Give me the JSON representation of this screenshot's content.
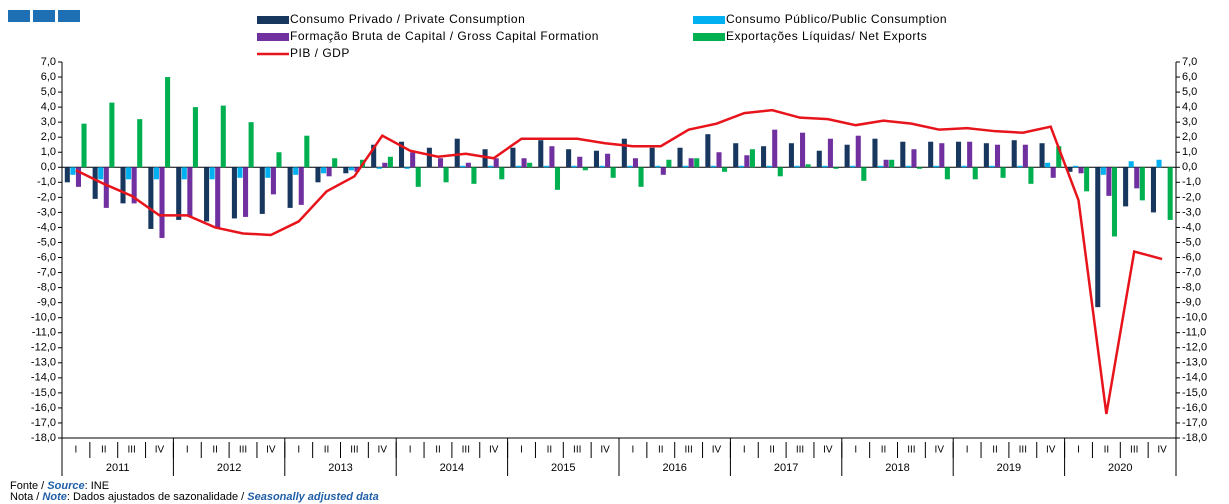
{
  "chart_data": {
    "type": "bar",
    "categories": [
      "I",
      "II",
      "III",
      "IV",
      "I",
      "II",
      "III",
      "IV",
      "I",
      "II",
      "III",
      "IV",
      "I",
      "II",
      "III",
      "IV",
      "I",
      "II",
      "III",
      "IV",
      "I",
      "II",
      "III",
      "IV",
      "I",
      "II",
      "III",
      "IV",
      "I",
      "II",
      "III",
      "IV",
      "I",
      "II",
      "III",
      "IV",
      "I",
      "II",
      "III",
      "IV"
    ],
    "groups": [
      "2011",
      "2012",
      "2013",
      "2014",
      "2015",
      "2016",
      "2017",
      "2018",
      "2019",
      "2020"
    ],
    "series": [
      {
        "name": "Consumo Privado / Private Consumption",
        "type": "bar",
        "color": "#17375e",
        "values": [
          -1.0,
          -2.1,
          -2.4,
          -4.1,
          -3.5,
          -3.6,
          -3.4,
          -3.1,
          -2.7,
          -1.0,
          -0.4,
          1.5,
          1.7,
          1.3,
          1.9,
          1.2,
          1.3,
          1.8,
          1.2,
          1.1,
          1.9,
          1.3,
          1.3,
          2.2,
          1.6,
          1.4,
          1.6,
          1.1,
          1.5,
          1.9,
          1.7,
          1.7,
          1.7,
          1.6,
          1.8,
          1.6,
          -0.3,
          -9.3,
          -2.6,
          -3.0
        ]
      },
      {
        "name": "Consumo Público/Public Consumption",
        "type": "bar",
        "color": "#00b0f0",
        "values": [
          -0.5,
          -0.8,
          -0.8,
          -0.8,
          -0.8,
          -0.8,
          -0.7,
          -0.7,
          -0.5,
          -0.4,
          -0.2,
          -0.1,
          -0.1,
          0.0,
          0.1,
          0.1,
          0.1,
          0.1,
          0.1,
          0.1,
          0.1,
          0.1,
          0.1,
          0.1,
          0.1,
          0.1,
          0.1,
          0.1,
          0.1,
          0.1,
          0.1,
          0.1,
          0.1,
          0.1,
          0.1,
          0.3,
          0.1,
          -0.5,
          0.4,
          0.5
        ]
      },
      {
        "name": "Formação Bruta de Capital / Gross Capital Formation",
        "type": "bar",
        "color": "#7030a0",
        "values": [
          -1.3,
          -2.7,
          -2.4,
          -4.7,
          -3.3,
          -4.0,
          -3.3,
          -1.8,
          -2.5,
          -0.6,
          -0.3,
          0.3,
          1.0,
          0.6,
          0.3,
          0.6,
          0.6,
          1.4,
          0.7,
          0.9,
          0.6,
          -0.5,
          0.6,
          1.0,
          0.8,
          2.5,
          2.3,
          1.9,
          2.1,
          0.5,
          1.2,
          1.6,
          1.7,
          1.5,
          1.5,
          -0.7,
          -0.4,
          -1.9,
          -1.4,
          0.0
        ]
      },
      {
        "name": "Exportações Líquidas/ Net Exports",
        "type": "bar",
        "color": "#00b050",
        "values": [
          2.9,
          4.3,
          3.2,
          6.0,
          4.0,
          4.1,
          3.0,
          1.0,
          2.1,
          0.6,
          0.5,
          0.7,
          -1.3,
          -1.0,
          -1.1,
          -0.8,
          0.3,
          -1.5,
          -0.2,
          -0.7,
          -1.3,
          0.5,
          0.6,
          -0.3,
          1.2,
          -0.6,
          0.2,
          -0.1,
          -0.9,
          0.5,
          -0.1,
          -0.8,
          -0.8,
          -0.7,
          -1.1,
          1.4,
          -1.6,
          -4.6,
          -2.2,
          -3.5
        ]
      },
      {
        "name": "PIB / GDP",
        "type": "line",
        "color": "#e8141b",
        "values": [
          -0.2,
          -1.1,
          -1.9,
          -3.2,
          -3.2,
          -4.0,
          -4.4,
          -4.5,
          -3.6,
          -1.6,
          -0.6,
          2.1,
          1.1,
          0.7,
          0.9,
          0.6,
          1.9,
          1.9,
          1.9,
          1.6,
          1.4,
          1.4,
          2.5,
          2.9,
          3.6,
          3.8,
          3.3,
          3.2,
          2.8,
          3.1,
          2.9,
          2.5,
          2.6,
          2.4,
          2.3,
          2.7,
          -2.2,
          -16.4,
          -5.6,
          -6.1
        ]
      }
    ],
    "ylim": [
      -18,
      7
    ],
    "yticks": [
      {
        "value": 7,
        "label": "7,0"
      },
      {
        "value": 6,
        "label": "6,0"
      },
      {
        "value": 5,
        "label": "5,0"
      },
      {
        "value": 4,
        "label": "4,0"
      },
      {
        "value": 3,
        "label": "3,0"
      },
      {
        "value": 2,
        "label": "2,0"
      },
      {
        "value": 1,
        "label": "1,0"
      },
      {
        "value": 0,
        "label": "0,0"
      },
      {
        "value": -1,
        "label": "-1,0"
      },
      {
        "value": -2,
        "label": "-2,0"
      },
      {
        "value": -3,
        "label": "-3,0"
      },
      {
        "value": -4,
        "label": "-4,0"
      },
      {
        "value": -5,
        "label": "-5,0"
      },
      {
        "value": -6,
        "label": "-6,0"
      },
      {
        "value": -7,
        "label": "-7,0"
      },
      {
        "value": -8,
        "label": "-8,0"
      },
      {
        "value": -9,
        "label": "-9,0"
      },
      {
        "value": -10,
        "label": "-10,0"
      },
      {
        "value": -11,
        "label": "-11,0"
      },
      {
        "value": -12,
        "label": "-12,0"
      },
      {
        "value": -13,
        "label": "-13,0"
      },
      {
        "value": -14,
        "label": "-14,0"
      },
      {
        "value": -15,
        "label": "-15,0"
      },
      {
        "value": -16,
        "label": "-16,0"
      },
      {
        "value": -17,
        "label": "-17,0"
      },
      {
        "value": -18,
        "label": "-18,0"
      }
    ],
    "y2lim": [
      -18,
      7
    ],
    "y2ticks": [
      {
        "value": 7,
        "label": "7,0"
      },
      {
        "value": 6,
        "label": "6,0"
      },
      {
        "value": 5,
        "label": "5,0"
      },
      {
        "value": 4,
        "label": "4,0"
      },
      {
        "value": 3,
        "label": "3,0"
      },
      {
        "value": 2,
        "label": "2,0"
      },
      {
        "value": 1,
        "label": "1,0"
      },
      {
        "value": 0,
        "label": "0,0"
      },
      {
        "value": -1,
        "label": "-1,0"
      },
      {
        "value": -2,
        "label": "-2,0"
      },
      {
        "value": -3,
        "label": "-3,0"
      },
      {
        "value": -4,
        "label": "-4,0"
      },
      {
        "value": -5,
        "label": "-5,0"
      },
      {
        "value": -6,
        "label": "-6,0"
      },
      {
        "value": -7,
        "label": "-7,0"
      },
      {
        "value": -8,
        "label": "-8,0"
      },
      {
        "value": -9,
        "label": "-9,0"
      },
      {
        "value": -10,
        "label": "-10,0"
      },
      {
        "value": -11,
        "label": "-11,0"
      },
      {
        "value": -12,
        "label": "-12,0"
      },
      {
        "value": -13,
        "label": "-13,0"
      },
      {
        "value": -14,
        "label": "-14,0"
      },
      {
        "value": -15,
        "label": "-15,0"
      },
      {
        "value": -16,
        "label": "-16,0"
      },
      {
        "value": -17,
        "label": "-17,0"
      },
      {
        "value": -18,
        "label": "-18,0"
      }
    ],
    "grid": false,
    "source": [
      "Fonte / ",
      "Source",
      ":  INE"
    ],
    "note": [
      "Nota / ",
      "Note",
      ": Dados ajustados de sazonalidade / ",
      "Seasonally adjusted data"
    ]
  }
}
